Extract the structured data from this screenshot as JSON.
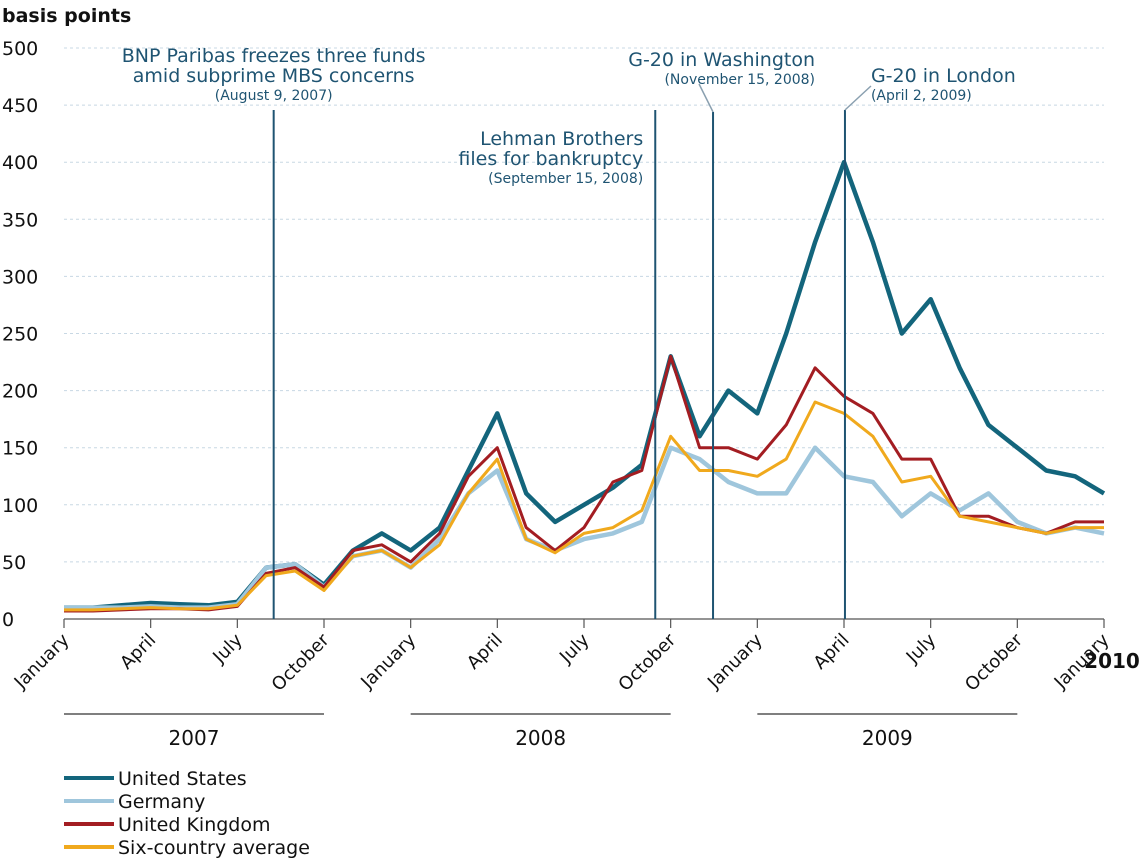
{
  "chart_data": {
    "type": "line",
    "ylabel": "basis points",
    "x": [
      "2007-01",
      "2007-02",
      "2007-03",
      "2007-04",
      "2007-05",
      "2007-06",
      "2007-07",
      "2007-08",
      "2007-09",
      "2007-10",
      "2007-11",
      "2007-12",
      "2008-01",
      "2008-02",
      "2008-03",
      "2008-04",
      "2008-05",
      "2008-06",
      "2008-07",
      "2008-08",
      "2008-09",
      "2008-10",
      "2008-11",
      "2008-12",
      "2009-01",
      "2009-02",
      "2009-03",
      "2009-04",
      "2009-05",
      "2009-06",
      "2009-07",
      "2009-08",
      "2009-09",
      "2009-10",
      "2009-11",
      "2009-12",
      "2010-01"
    ],
    "series": [
      {
        "name": "United States",
        "color": "#13657c",
        "width": 4.5,
        "values": [
          10,
          10,
          12,
          14,
          13,
          12,
          15,
          45,
          48,
          30,
          60,
          75,
          60,
          80,
          130,
          180,
          110,
          85,
          100,
          115,
          135,
          230,
          160,
          200,
          180,
          250,
          330,
          400,
          330,
          250,
          280,
          220,
          170,
          150,
          130,
          125,
          110
        ]
      },
      {
        "name": "Germany",
        "color": "#9fc6dc",
        "width": 4.5,
        "values": [
          10,
          10,
          10,
          11,
          10,
          10,
          13,
          45,
          48,
          28,
          55,
          60,
          45,
          70,
          110,
          130,
          70,
          60,
          70,
          75,
          85,
          150,
          140,
          120,
          110,
          110,
          150,
          125,
          120,
          90,
          110,
          95,
          110,
          85,
          75,
          80,
          75
        ]
      },
      {
        "name": "United Kingdom",
        "color": "#a31d22",
        "width": 3,
        "values": [
          7,
          7,
          8,
          9,
          9,
          8,
          11,
          40,
          45,
          28,
          60,
          65,
          50,
          75,
          125,
          150,
          80,
          60,
          80,
          120,
          130,
          230,
          150,
          150,
          140,
          170,
          220,
          195,
          180,
          140,
          140,
          90,
          90,
          80,
          75,
          85,
          85
        ]
      },
      {
        "name": "Six-country average",
        "color": "#f0a91d",
        "width": 3,
        "values": [
          8,
          8,
          9,
          10,
          9,
          9,
          12,
          38,
          42,
          25,
          55,
          60,
          45,
          65,
          110,
          140,
          70,
          58,
          75,
          80,
          95,
          160,
          130,
          130,
          125,
          140,
          190,
          180,
          160,
          120,
          125,
          90,
          85,
          80,
          75,
          80,
          80
        ]
      }
    ],
    "xlim": [
      "2007-01",
      "2010-01"
    ],
    "xticks": [
      {
        "value": "2007-01",
        "label": "January"
      },
      {
        "value": "2007-04",
        "label": "April"
      },
      {
        "value": "2007-07",
        "label": "July"
      },
      {
        "value": "2007-10",
        "label": "October"
      },
      {
        "value": "2008-01",
        "label": "January"
      },
      {
        "value": "2008-04",
        "label": "April"
      },
      {
        "value": "2008-07",
        "label": "July"
      },
      {
        "value": "2008-10",
        "label": "October"
      },
      {
        "value": "2009-01",
        "label": "January"
      },
      {
        "value": "2009-04",
        "label": "April"
      },
      {
        "value": "2009-07",
        "label": "July"
      },
      {
        "value": "2009-10",
        "label": "October"
      },
      {
        "value": "2010-01",
        "label": "January"
      }
    ],
    "year_labels": [
      "2007",
      "2008",
      "2009",
      "2010"
    ],
    "ylim": [
      0,
      500
    ],
    "yticks": [
      0,
      50,
      100,
      150,
      200,
      250,
      300,
      350,
      400,
      450,
      500
    ],
    "grid": true,
    "annotations": [
      {
        "x": "2007-08-09",
        "lines": [
          "BNP Paribas freezes three funds",
          "amid subprime MBS concerns"
        ],
        "date": "(August 9, 2007)"
      },
      {
        "x": "2008-09-15",
        "lines": [
          "Lehman Brothers",
          "files for bankruptcy"
        ],
        "date": "(September 15, 2008)"
      },
      {
        "x": "2008-11-15",
        "lines": [
          "G-20 in Washington"
        ],
        "date": "(November 15, 2008)"
      },
      {
        "x": "2009-04-02",
        "lines": [
          "G-20 in London"
        ],
        "date": "(April 2, 2009)"
      }
    ]
  }
}
